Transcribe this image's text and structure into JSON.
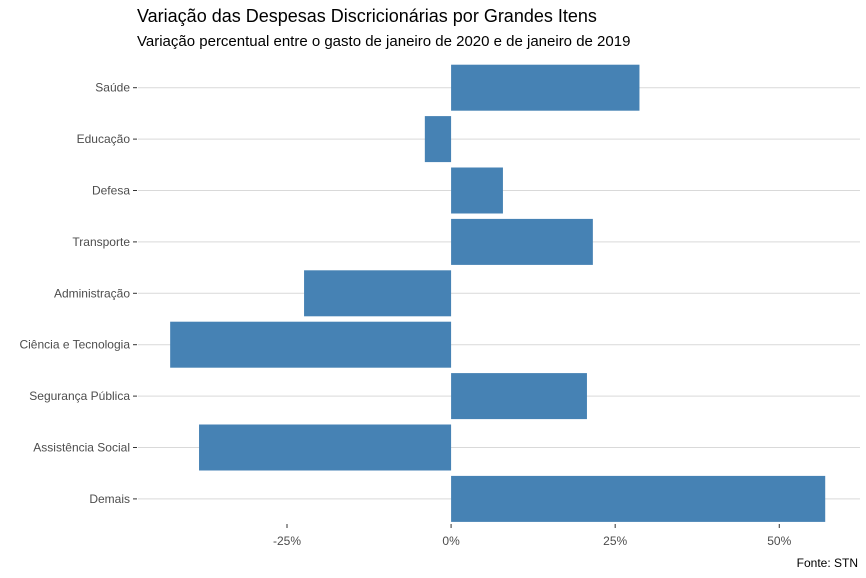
{
  "chart_data": {
    "type": "bar",
    "orientation": "horizontal",
    "title": "Variação das Despesas Discricionárias por Grandes Itens",
    "subtitle": "Variação percentual entre o gasto de janeiro de 2020 e de janeiro de 2019",
    "caption": "Fonte: STN",
    "xlabel": "",
    "ylabel": "",
    "categories": [
      "Saúde",
      "Educação",
      "Defesa",
      "Transporte",
      "Administração",
      "Ciência e Tecnologia",
      "Segurança Pública",
      "Assistência Social",
      "Demais"
    ],
    "values": [
      28.7,
      -4.0,
      7.9,
      21.6,
      -22.4,
      -42.8,
      20.7,
      -38.4,
      57.0
    ],
    "xlim": [
      -47.7,
      62.3
    ],
    "xticks": [
      -25,
      0,
      25,
      50
    ],
    "xtick_labels": [
      "-25%",
      "0%",
      "25%",
      "50%"
    ],
    "grid": "horizontal",
    "bar_color": "#4682B4"
  }
}
